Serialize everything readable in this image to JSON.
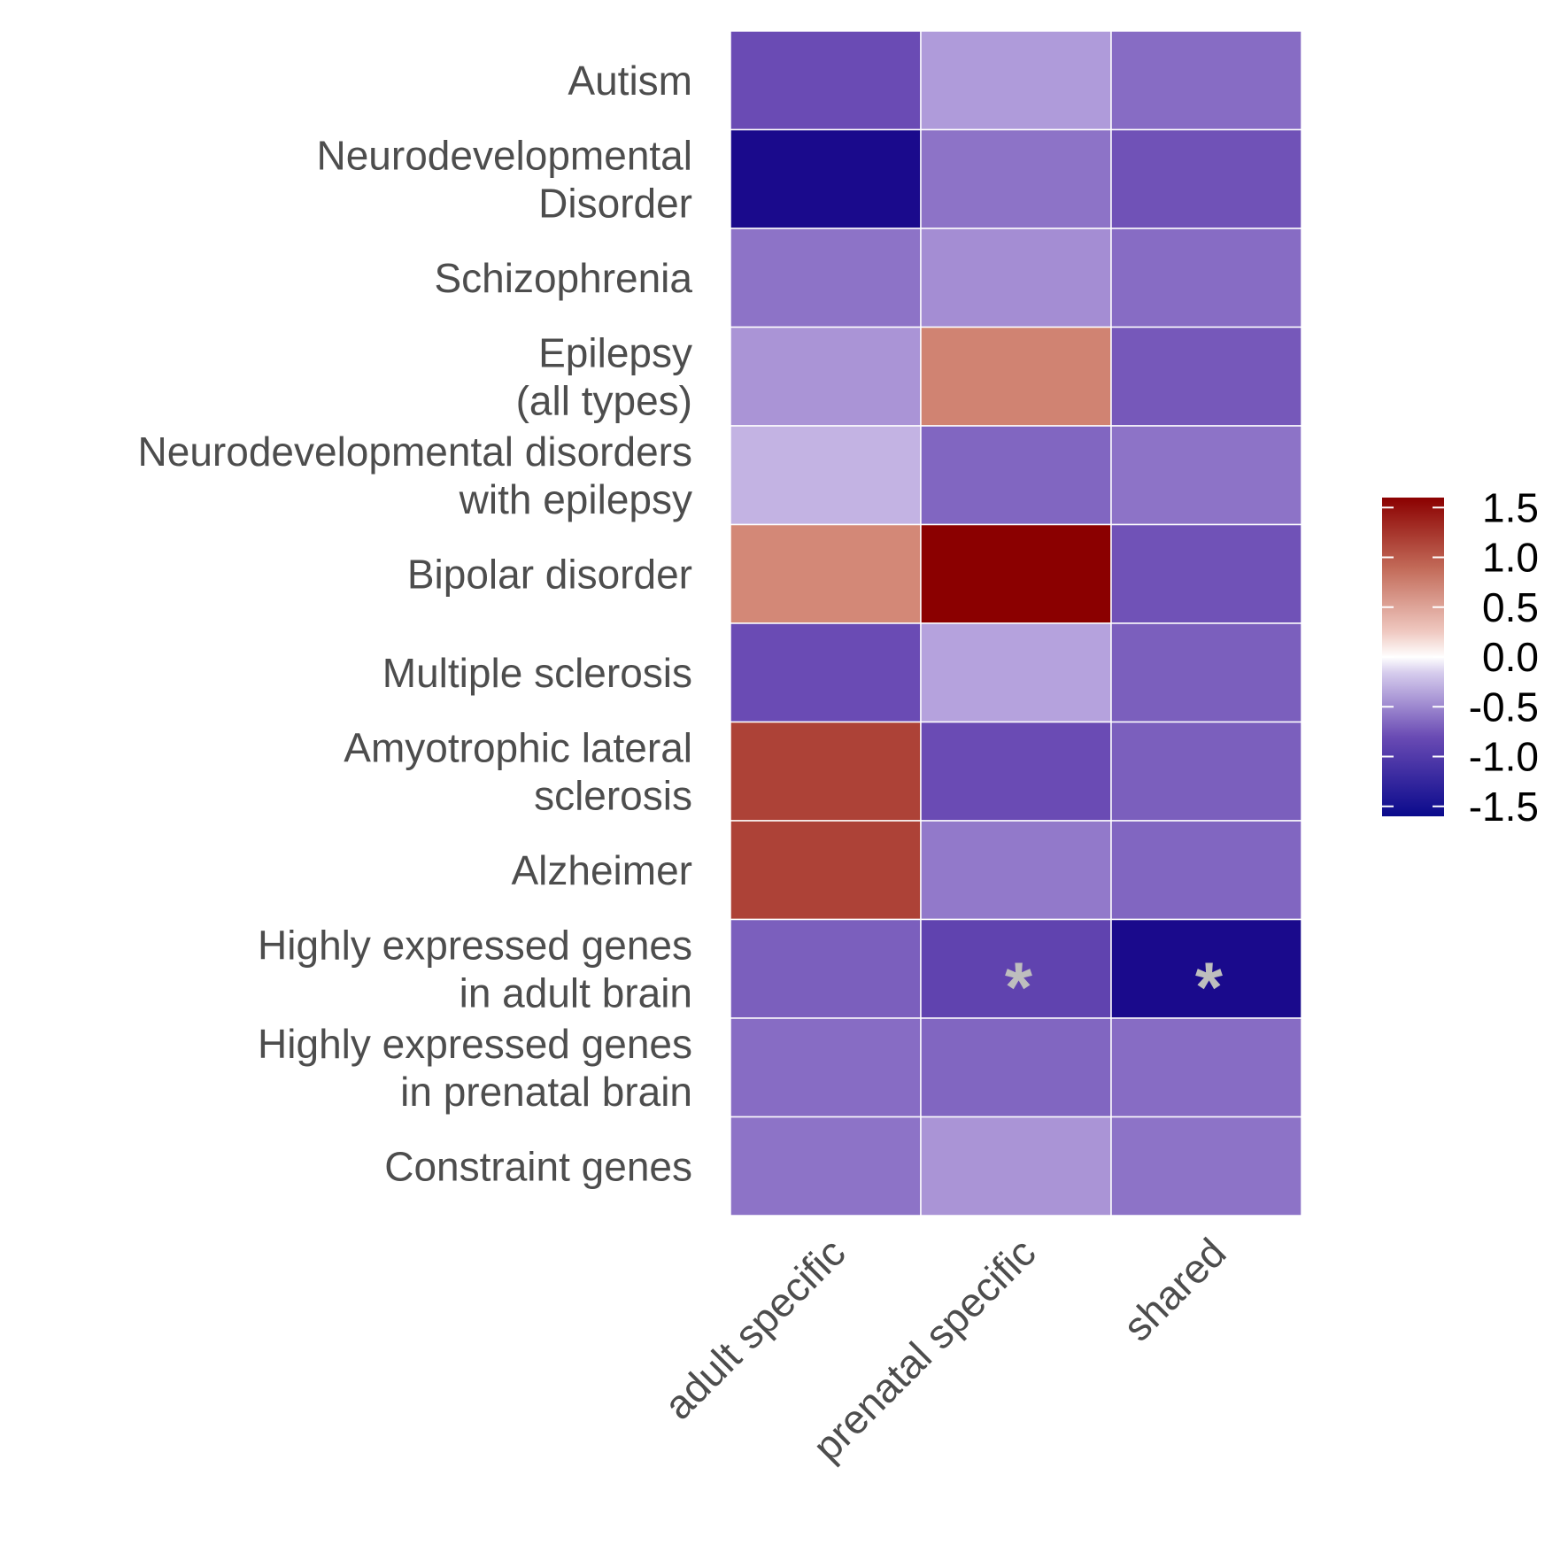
{
  "chart_data": {
    "type": "heatmap",
    "title": "",
    "xlabel": "",
    "ylabel": "",
    "columns": [
      "adult specific",
      "prenatal specific",
      "shared"
    ],
    "rows": [
      {
        "label": [
          "Autism"
        ],
        "values": [
          -1.2,
          -0.6,
          -0.95
        ]
      },
      {
        "label": [
          "Neurodevelopmental",
          "Disorder"
        ],
        "values": [
          -1.6,
          -0.9,
          -1.15
        ]
      },
      {
        "label": [
          "Schizophrenia"
        ],
        "values": [
          -0.9,
          -0.7,
          -0.95
        ]
      },
      {
        "label": [
          "Epilepsy",
          "(all types)"
        ],
        "values": [
          -0.65,
          0.95,
          -1.1
        ]
      },
      {
        "label": [
          "Neurodevelopmental disorders",
          "with epilepsy"
        ],
        "values": [
          -0.45,
          -1.0,
          -0.9
        ]
      },
      {
        "label": [
          "Bipolar disorder"
        ],
        "values": [
          0.9,
          1.6,
          -1.15
        ]
      },
      {
        "label": [
          "Multiple sclerosis"
        ],
        "values": [
          -1.2,
          -0.55,
          -1.05
        ]
      },
      {
        "label": [
          "Amyotrophic lateral",
          "sclerosis"
        ],
        "values": [
          1.35,
          -1.2,
          -1.05
        ]
      },
      {
        "label": [
          "Alzheimer"
        ],
        "values": [
          1.35,
          -0.85,
          -1.0
        ]
      },
      {
        "label": [
          "Highly expressed genes",
          "in adult brain"
        ],
        "values": [
          -1.05,
          -1.25,
          -1.6
        ]
      },
      {
        "label": [
          "Highly expressed genes",
          "in prenatal brain"
        ],
        "values": [
          -0.95,
          -1.0,
          -0.95
        ]
      },
      {
        "label": [
          "Constraint genes"
        ],
        "values": [
          -0.9,
          -0.65,
          -0.9
        ]
      }
    ],
    "significant": [
      [
        9,
        1
      ],
      [
        9,
        2
      ]
    ],
    "significance_marker": "*",
    "color_scale": {
      "min": -1.6,
      "max": 1.6,
      "low_color": "#1a0a8c",
      "mid_color": "#ffffff",
      "high_color": "#8b0000",
      "ticks": [
        "1.5",
        "1.0",
        "0.5",
        "0.0",
        "-0.5",
        "-1.0",
        "-1.5"
      ],
      "tick_values": [
        1.5,
        1.0,
        0.5,
        0.0,
        -0.5,
        -1.0,
        -1.5
      ]
    },
    "legend_position": "right",
    "grid": false
  }
}
